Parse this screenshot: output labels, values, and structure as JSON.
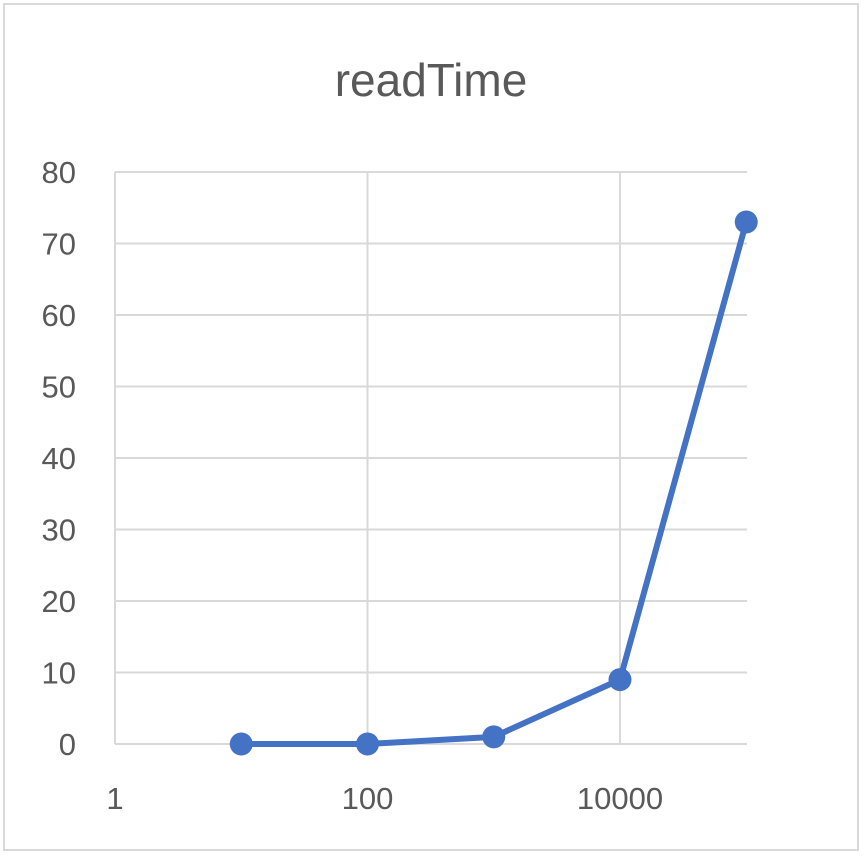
{
  "chart_data": {
    "type": "line",
    "title": "readTime",
    "xlabel": "",
    "ylabel": "",
    "x_scale": "log10",
    "xlim": [
      1,
      100000
    ],
    "x_ticks": [
      "1",
      "100",
      "10000"
    ],
    "ylim": [
      0,
      80
    ],
    "y_ticks": [
      "0",
      "10",
      "20",
      "30",
      "40",
      "50",
      "60",
      "70",
      "80"
    ],
    "grid": true,
    "legend": "none",
    "series": [
      {
        "color": "#4472c4",
        "x": [
          10,
          100,
          1000,
          10000,
          100000
        ],
        "y": [
          0,
          0,
          1,
          9,
          73
        ]
      }
    ]
  }
}
